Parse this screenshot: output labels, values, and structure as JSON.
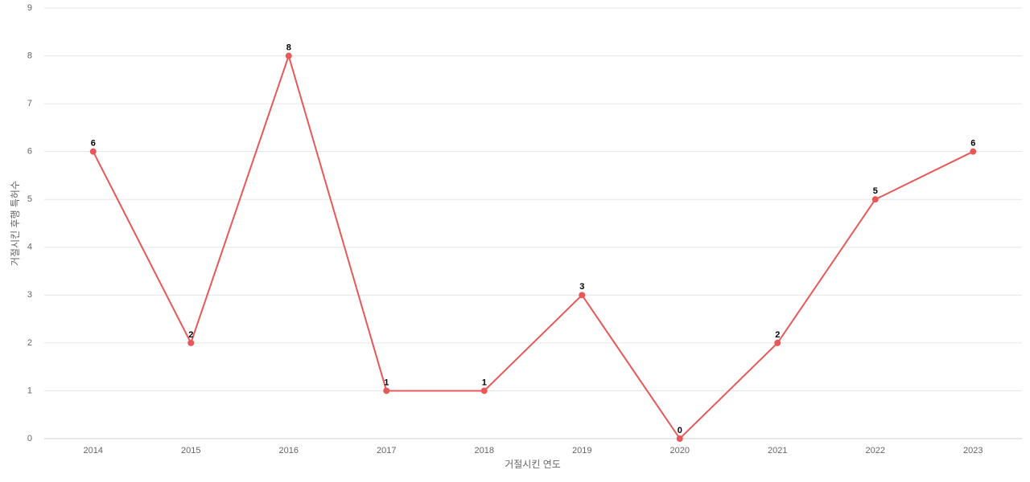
{
  "chart_data": {
    "type": "line",
    "x_label": "거절시킨 연도",
    "y_label": "거절시킨 후행 특허수",
    "categories": [
      "2014",
      "2015",
      "2016",
      "2017",
      "2018",
      "2019",
      "2020",
      "2021",
      "2022",
      "2023"
    ],
    "values": [
      6,
      2,
      8,
      1,
      1,
      3,
      0,
      2,
      5,
      6
    ],
    "color": "#e85858",
    "ylim": [
      0,
      9
    ],
    "yticks": [
      0,
      1,
      2,
      3,
      4,
      5,
      6,
      7,
      8,
      9
    ],
    "grid": true
  }
}
